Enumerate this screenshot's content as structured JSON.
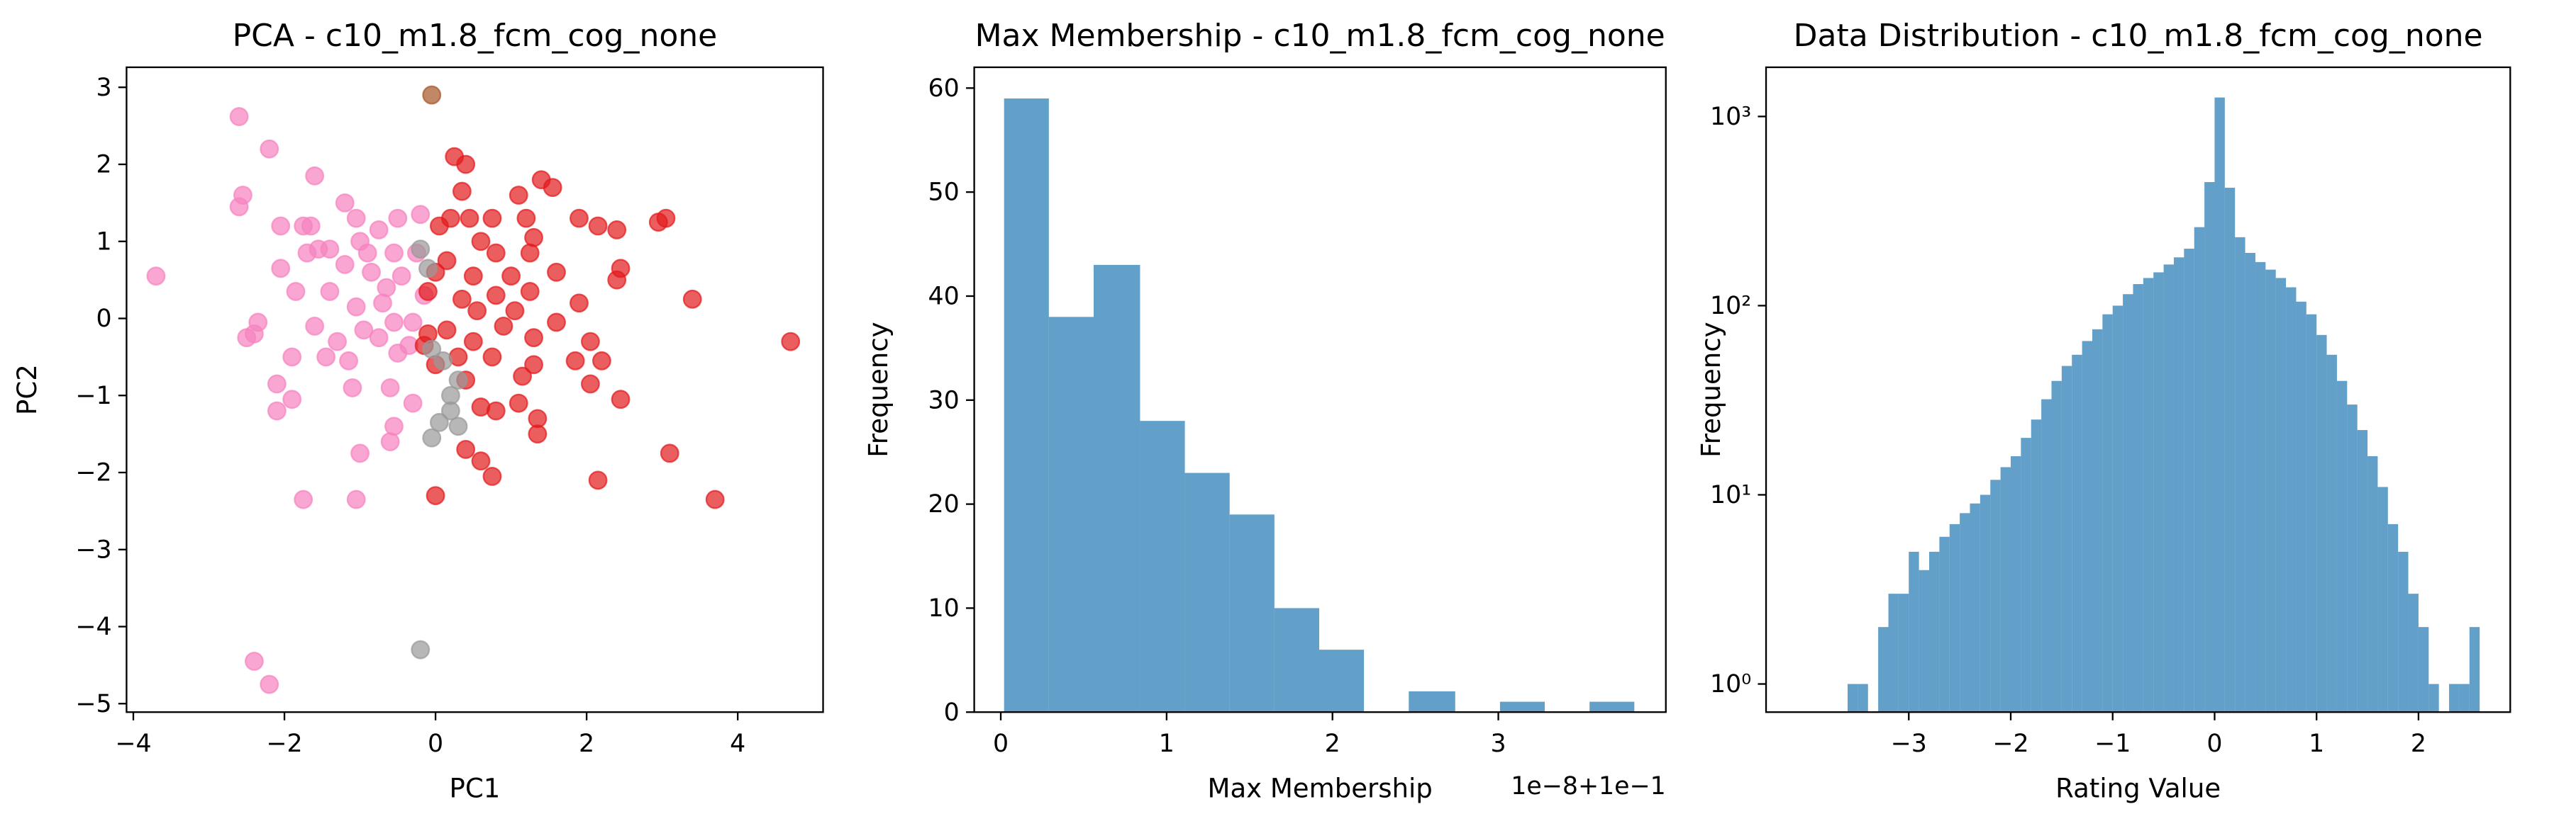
{
  "chart_data": [
    {
      "type": "scatter",
      "title": "PCA - c10_m1.8_fcm_cog_none",
      "xlabel": "PC1",
      "ylabel": "PC2",
      "xlim": [
        -4.09,
        5.13
      ],
      "ylim": [
        -5.11,
        3.26
      ],
      "xticks": [
        {
          "value": -4,
          "label": "−4"
        },
        {
          "value": -2,
          "label": "−2"
        },
        0,
        2,
        4
      ],
      "yticks": [
        {
          "value": -5,
          "label": "−5"
        },
        {
          "value": -4,
          "label": "−4"
        },
        {
          "value": -3,
          "label": "−3"
        },
        {
          "value": -2,
          "label": "−2"
        },
        {
          "value": -1,
          "label": "−1"
        },
        0,
        1,
        2,
        3
      ],
      "series": [
        {
          "color": "#f781bf",
          "x": [
            -3.7,
            -2.6,
            -2.2,
            -2.55,
            -2.6,
            -1.6,
            -1.2,
            -1.75,
            -1.65,
            -2.05,
            -0.5,
            -0.2,
            -0.75,
            -1.05,
            -1.4,
            -1.7,
            -1.55,
            -2.05,
            -1.0,
            -0.9,
            -0.55,
            -0.25,
            -0.85,
            -1.2,
            -0.45,
            -0.65,
            -1.85,
            -1.4,
            -1.05,
            -0.7,
            -2.35,
            -2.4,
            -2.5,
            -1.6,
            -1.3,
            -1.45,
            -0.95,
            -0.55,
            -0.35,
            -1.15,
            -1.9,
            -0.5,
            -2.1,
            -1.9,
            -2.1,
            -1.1,
            -0.6,
            -0.3,
            -0.55,
            -0.6,
            -1.0,
            -1.75,
            -1.05,
            -2.4,
            -2.2,
            -0.3,
            -0.15,
            -0.75
          ],
          "values": [
            0.55,
            2.62,
            2.2,
            1.6,
            1.45,
            1.85,
            1.5,
            1.2,
            1.2,
            1.2,
            1.3,
            1.35,
            1.15,
            1.3,
            0.9,
            0.85,
            0.9,
            0.65,
            1.0,
            0.85,
            0.85,
            0.85,
            0.6,
            0.7,
            0.55,
            0.4,
            0.35,
            0.35,
            0.15,
            0.2,
            -0.05,
            -0.2,
            -0.25,
            -0.1,
            -0.3,
            -0.5,
            -0.15,
            -0.05,
            -0.35,
            -0.55,
            -0.5,
            -0.45,
            -0.85,
            -1.05,
            -1.2,
            -0.9,
            -0.9,
            -1.1,
            -1.4,
            -1.6,
            -1.75,
            -2.35,
            -2.35,
            -4.45,
            -4.75,
            -0.05,
            0.3,
            -0.25
          ]
        },
        {
          "color": "#e31a1c",
          "x": [
            0.25,
            0.4,
            1.4,
            1.55,
            1.1,
            0.35,
            0.2,
            0.45,
            0.75,
            1.2,
            1.9,
            2.4,
            2.15,
            2.95,
            3.05,
            0.05,
            0.6,
            1.3,
            1.25,
            0.15,
            0.8,
            1.6,
            2.4,
            2.45,
            0.0,
            0.5,
            1.0,
            3.4,
            -0.1,
            0.35,
            0.8,
            1.25,
            1.9,
            0.55,
            1.05,
            1.6,
            0.15,
            0.5,
            0.9,
            1.3,
            2.05,
            4.7,
            -0.15,
            0.3,
            0.75,
            1.3,
            1.85,
            2.2,
            0.4,
            1.15,
            2.05,
            2.45,
            0.6,
            0.8,
            1.1,
            1.35,
            1.35,
            0.4,
            0.6,
            0.75,
            2.15,
            3.1,
            3.7,
            0.0,
            0.0,
            -0.1
          ],
          "values": [
            2.1,
            2.0,
            1.8,
            1.7,
            1.6,
            1.65,
            1.3,
            1.3,
            1.3,
            1.3,
            1.3,
            1.15,
            1.2,
            1.25,
            1.3,
            1.2,
            1.0,
            1.05,
            0.85,
            0.75,
            0.85,
            0.6,
            0.5,
            0.65,
            0.6,
            0.55,
            0.55,
            0.25,
            0.35,
            0.25,
            0.3,
            0.35,
            0.2,
            0.1,
            0.1,
            -0.05,
            -0.15,
            -0.3,
            -0.1,
            -0.25,
            -0.3,
            -0.3,
            -0.35,
            -0.5,
            -0.5,
            -0.6,
            -0.55,
            -0.55,
            -0.8,
            -0.75,
            -0.85,
            -1.05,
            -1.15,
            -1.2,
            -1.1,
            -1.3,
            -1.5,
            -1.7,
            -1.85,
            -2.05,
            -2.1,
            -1.75,
            -2.35,
            -2.3,
            -0.6,
            -0.2
          ]
        },
        {
          "color": "#999999",
          "x": [
            -0.2,
            -0.1,
            -0.05,
            0.1,
            0.3,
            0.2,
            0.05,
            0.3,
            -0.05,
            0.2,
            -0.2
          ],
          "values": [
            0.9,
            0.65,
            -0.4,
            -0.55,
            -0.8,
            -1.0,
            -1.35,
            -1.4,
            -1.55,
            -1.2,
            -4.3
          ]
        },
        {
          "color": "#a65628",
          "x": [
            -0.05
          ],
          "values": [
            2.9
          ]
        }
      ]
    },
    {
      "type": "histogram",
      "title": "Max Membership - c10_m1.8_fcm_cog_none",
      "xlabel": "Max Membership",
      "ylabel": "Frequency",
      "offset_text": "1e−8+1e−1",
      "color": "#1f77b4",
      "xlim": [
        -0.16,
        4.01
      ],
      "ylim": [
        0,
        62
      ],
      "xticks": [
        0,
        1,
        2,
        3
      ],
      "yticks": [
        0,
        10,
        20,
        30,
        40,
        50,
        60
      ],
      "bins": [
        0.02,
        0.29,
        0.56,
        0.84,
        1.11,
        1.38,
        1.65,
        1.92,
        2.19,
        2.46,
        2.74,
        3.01,
        3.28,
        3.55,
        3.82
      ],
      "values": [
        59,
        38,
        43,
        28,
        23,
        19,
        10,
        6,
        0,
        2,
        0,
        1,
        0,
        1
      ]
    },
    {
      "type": "histogram",
      "title": "Data Distribution - c10_m1.8_fcm_cog_none",
      "xlabel": "Rating Value",
      "ylabel": "Frequency",
      "color": "#1f77b4",
      "yscale": "log",
      "xlim": [
        -4.4,
        2.9
      ],
      "ylim": [
        0.71,
        1820
      ],
      "xticks": [
        {
          "value": -3,
          "label": "−3"
        },
        {
          "value": -2,
          "label": "−2"
        },
        {
          "value": -1,
          "label": "−1"
        },
        0,
        1,
        2
      ],
      "yticks": [
        {
          "value": 1,
          "label": "10⁰"
        },
        {
          "value": 10,
          "label": "10¹"
        },
        {
          "value": 100,
          "label": "10²"
        },
        {
          "value": 1000,
          "label": "10³"
        }
      ],
      "bins": [
        -3.6,
        -3.5,
        -3.4,
        -3.3,
        -3.2,
        -3.1,
        -3.0,
        -2.9,
        -2.8,
        -2.7,
        -2.6,
        -2.5,
        -2.4,
        -2.3,
        -2.2,
        -2.1,
        -2.0,
        -1.9,
        -1.8,
        -1.7,
        -1.6,
        -1.5,
        -1.4,
        -1.3,
        -1.2,
        -1.1,
        -1.0,
        -0.9,
        -0.8,
        -0.7,
        -0.6,
        -0.5,
        -0.4,
        -0.3,
        -0.2,
        -0.1,
        0.0,
        0.1,
        0.2,
        0.3,
        0.4,
        0.5,
        0.6,
        0.7,
        0.8,
        0.9,
        1.0,
        1.1,
        1.2,
        1.3,
        1.4,
        1.5,
        1.6,
        1.7,
        1.8,
        1.9,
        2.0,
        2.1,
        2.2,
        2.3,
        2.4,
        2.5,
        2.6
      ],
      "values": [
        1,
        1,
        0,
        2,
        3,
        3,
        5,
        4,
        5,
        6,
        7,
        8,
        9,
        10,
        12,
        14,
        16,
        20,
        25,
        32,
        40,
        48,
        55,
        65,
        75,
        90,
        100,
        115,
        130,
        140,
        150,
        165,
        180,
        200,
        260,
        450,
        1260,
        420,
        230,
        190,
        170,
        155,
        140,
        125,
        105,
        90,
        70,
        55,
        40,
        30,
        22,
        16,
        11,
        7,
        5,
        3,
        2,
        1,
        0,
        1,
        1,
        2
      ]
    }
  ]
}
